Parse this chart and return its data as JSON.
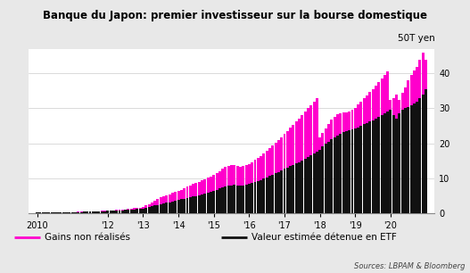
{
  "title": "Banque du Japon: premier investisseur sur la bourse domestique",
  "ylabel_unit": "50T yen",
  "source": "Sources: LBPAM & Bloomberg",
  "legend_pink": "Gains non réalisés",
  "legend_black": "Valeur estimée détenue en ETF",
  "background_color": "#e8e8e8",
  "plot_bg_color": "#ffffff",
  "bar_color": "#111111",
  "line_color": "#ff00cc",
  "yticks": [
    0,
    10,
    20,
    30,
    40
  ],
  "xtick_labels": [
    "2010",
    "'12",
    "'13",
    "'14",
    "'15",
    "'16",
    "'17",
    "'18",
    "'19",
    "'20"
  ],
  "xtick_positions": [
    2010,
    2012,
    2013,
    2014,
    2015,
    2016,
    2017,
    2018,
    2019,
    2020
  ],
  "months": [
    2010.0,
    2010.083,
    2010.167,
    2010.25,
    2010.333,
    2010.417,
    2010.5,
    2010.583,
    2010.667,
    2010.75,
    2010.833,
    2010.917,
    2011.0,
    2011.083,
    2011.167,
    2011.25,
    2011.333,
    2011.417,
    2011.5,
    2011.583,
    2011.667,
    2011.75,
    2011.833,
    2011.917,
    2012.0,
    2012.083,
    2012.167,
    2012.25,
    2012.333,
    2012.417,
    2012.5,
    2012.583,
    2012.667,
    2012.75,
    2012.833,
    2012.917,
    2013.0,
    2013.083,
    2013.167,
    2013.25,
    2013.333,
    2013.417,
    2013.5,
    2013.583,
    2013.667,
    2013.75,
    2013.833,
    2013.917,
    2014.0,
    2014.083,
    2014.167,
    2014.25,
    2014.333,
    2014.417,
    2014.5,
    2014.583,
    2014.667,
    2014.75,
    2014.833,
    2014.917,
    2015.0,
    2015.083,
    2015.167,
    2015.25,
    2015.333,
    2015.417,
    2015.5,
    2015.583,
    2015.667,
    2015.75,
    2015.833,
    2015.917,
    2016.0,
    2016.083,
    2016.167,
    2016.25,
    2016.333,
    2016.417,
    2016.5,
    2016.583,
    2016.667,
    2016.75,
    2016.833,
    2016.917,
    2017.0,
    2017.083,
    2017.167,
    2017.25,
    2017.333,
    2017.417,
    2017.5,
    2017.583,
    2017.667,
    2017.75,
    2017.833,
    2017.917,
    2018.0,
    2018.083,
    2018.167,
    2018.25,
    2018.333,
    2018.417,
    2018.5,
    2018.583,
    2018.667,
    2018.75,
    2018.833,
    2018.917,
    2019.0,
    2019.083,
    2019.167,
    2019.25,
    2019.333,
    2019.417,
    2019.5,
    2019.583,
    2019.667,
    2019.75,
    2019.833,
    2019.917,
    2020.0,
    2020.083,
    2020.167,
    2020.25,
    2020.333,
    2020.417,
    2020.5,
    2020.583,
    2020.667,
    2020.75,
    2020.833,
    2020.917,
    2021.0
  ],
  "etf_values": [
    0.08,
    0.09,
    0.1,
    0.11,
    0.13,
    0.14,
    0.15,
    0.16,
    0.17,
    0.18,
    0.2,
    0.22,
    0.24,
    0.26,
    0.28,
    0.3,
    0.32,
    0.35,
    0.38,
    0.41,
    0.44,
    0.47,
    0.5,
    0.54,
    0.58,
    0.62,
    0.66,
    0.7,
    0.75,
    0.8,
    0.86,
    0.92,
    0.98,
    1.05,
    1.13,
    1.22,
    1.32,
    1.5,
    1.7,
    1.9,
    2.1,
    2.3,
    2.5,
    2.7,
    2.9,
    3.1,
    3.3,
    3.5,
    3.7,
    3.9,
    4.1,
    4.3,
    4.5,
    4.7,
    4.9,
    5.1,
    5.35,
    5.6,
    5.85,
    6.1,
    6.4,
    6.7,
    7.0,
    7.3,
    7.6,
    7.8,
    7.9,
    8.0,
    7.9,
    7.8,
    7.9,
    8.1,
    8.3,
    8.6,
    8.9,
    9.2,
    9.5,
    9.8,
    10.2,
    10.6,
    11.0,
    11.4,
    11.8,
    12.2,
    12.6,
    13.0,
    13.4,
    13.8,
    14.2,
    14.6,
    15.0,
    15.5,
    16.0,
    16.5,
    17.0,
    17.5,
    18.2,
    19.0,
    19.8,
    20.5,
    21.2,
    21.8,
    22.3,
    22.8,
    23.2,
    23.5,
    23.7,
    23.9,
    24.2,
    24.6,
    25.0,
    25.4,
    25.8,
    26.2,
    26.6,
    27.0,
    27.5,
    28.0,
    28.5,
    29.0,
    29.5,
    28.0,
    27.0,
    28.5,
    29.5,
    30.0,
    30.5,
    31.0,
    31.5,
    32.0,
    33.0,
    34.0,
    35.5
  ],
  "gains_values": [
    0.02,
    0.02,
    0.02,
    0.02,
    0.02,
    0.03,
    0.03,
    0.03,
    0.03,
    0.03,
    0.04,
    0.04,
    0.04,
    0.04,
    0.04,
    0.05,
    0.05,
    0.05,
    0.06,
    0.06,
    0.06,
    0.06,
    0.07,
    0.07,
    0.08,
    0.1,
    0.12,
    0.14,
    0.16,
    0.18,
    0.2,
    0.22,
    0.25,
    0.28,
    0.3,
    0.35,
    0.4,
    0.6,
    0.9,
    1.2,
    1.5,
    1.8,
    2.0,
    2.1,
    2.2,
    2.3,
    2.4,
    2.5,
    2.6,
    2.8,
    3.0,
    3.2,
    3.4,
    3.6,
    3.8,
    3.9,
    4.0,
    4.1,
    4.2,
    4.3,
    4.5,
    4.7,
    5.0,
    5.3,
    5.6,
    5.8,
    5.9,
    5.8,
    5.6,
    5.4,
    5.5,
    5.7,
    5.8,
    6.0,
    6.3,
    6.6,
    6.9,
    7.2,
    7.6,
    8.0,
    8.4,
    8.8,
    9.2,
    9.6,
    10.0,
    10.5,
    11.0,
    11.5,
    12.0,
    12.5,
    13.0,
    13.5,
    14.0,
    14.5,
    15.0,
    15.5,
    3.5,
    4.0,
    4.5,
    5.0,
    5.5,
    5.8,
    6.0,
    5.8,
    5.6,
    5.4,
    5.5,
    5.8,
    6.0,
    6.5,
    7.0,
    7.5,
    8.0,
    8.5,
    9.0,
    9.5,
    10.0,
    10.5,
    11.0,
    11.5,
    3.0,
    5.0,
    7.0,
    4.0,
    5.0,
    6.0,
    7.5,
    8.5,
    9.5,
    10.0,
    11.0,
    12.0,
    8.5
  ]
}
